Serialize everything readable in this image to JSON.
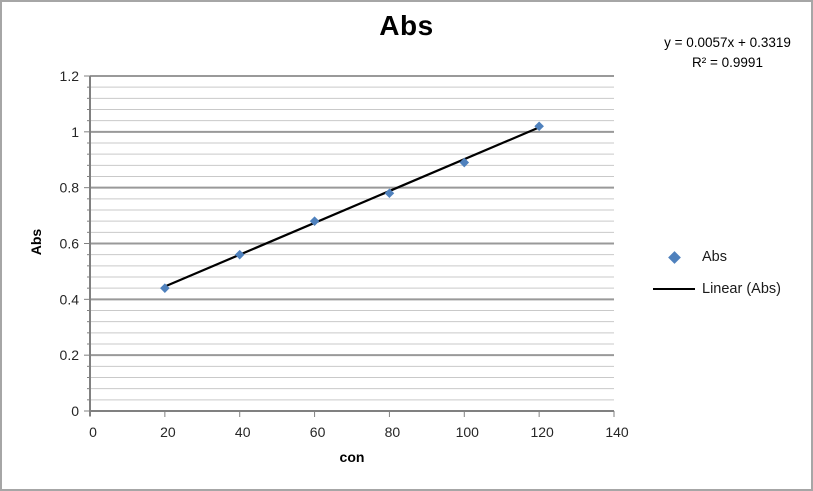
{
  "chart": {
    "title": "Abs",
    "equation": {
      "line1": "y = 0.0057x + 0.3319",
      "line2": "R² = 0.9991"
    },
    "axes": {
      "x_title": "con",
      "y_title": "Abs"
    },
    "legend": {
      "items": [
        {
          "label": "Abs",
          "marker": "diamond"
        },
        {
          "label": "Linear (Abs)",
          "marker": "line"
        }
      ]
    }
  },
  "chart_data": {
    "type": "scatter",
    "title": "Abs",
    "xlabel": "con",
    "ylabel": "Abs",
    "series": [
      {
        "name": "Abs",
        "x": [
          20,
          40,
          60,
          80,
          100,
          120
        ],
        "y": [
          0.44,
          0.56,
          0.68,
          0.78,
          0.89,
          1.02
        ]
      }
    ],
    "trendline": {
      "name": "Linear (Abs)",
      "equation": "y = 0.0057x + 0.3319",
      "slope": 0.0057,
      "intercept": 0.3319,
      "r_squared": 0.9991,
      "x_start": 20,
      "x_end": 120
    },
    "xlim": [
      0,
      140
    ],
    "ylim": [
      0,
      1.2
    ],
    "x_tick_labels": [
      "0",
      "20",
      "40",
      "60",
      "80",
      "100",
      "120",
      "140"
    ],
    "y_tick_labels": [
      "0",
      "0.2",
      "0.4",
      "0.6",
      "0.8",
      "1",
      "1.2"
    ],
    "y_minor_unit": 0.04,
    "grid": "horizontal-major-minor",
    "legend_position": "right",
    "colors": {
      "marker": "#4F81BD",
      "trendline": "#000000",
      "major_gridline": "#999999",
      "minor_gridline": "#C9C9C9",
      "axis_line": "#808080",
      "tick_label": "#262626"
    }
  }
}
